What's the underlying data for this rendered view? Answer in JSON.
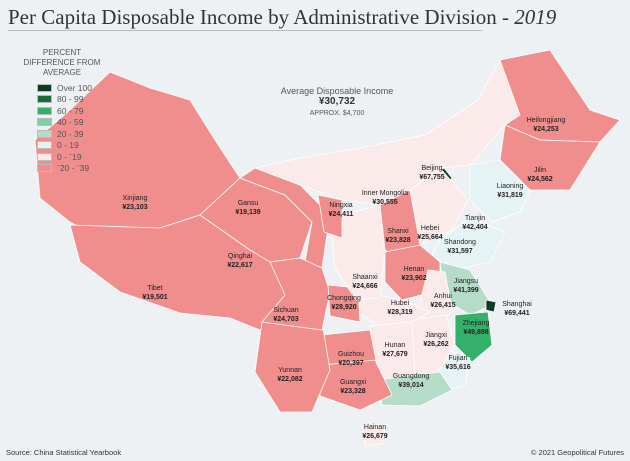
{
  "title": "Per Capita Disposable Income by Administrative Division - ",
  "title_year": "2019",
  "legend": {
    "heading": "PERCENT DIFFERENCE FROM AVERAGE",
    "items": [
      {
        "label": "Over 100",
        "color": "#0e3a22"
      },
      {
        "label": "80 - 99",
        "color": "#1a6b3c"
      },
      {
        "label": "60 - 79",
        "color": "#35b06a"
      },
      {
        "label": "40 - 59",
        "color": "#7fd0a0"
      },
      {
        "label": "20 - 39",
        "color": "#b5dcc8"
      },
      {
        "label": "0 - 19",
        "color": "#e6f3f5"
      },
      {
        "label": "0 - ˉ19",
        "color": "#fbeaea"
      },
      {
        "label": "ˉ20 - ˉ39",
        "color": "#f08d8d"
      }
    ]
  },
  "average": {
    "label": "Average Disposable Income",
    "value": "¥30,732",
    "approx": "APPROX. $4,700"
  },
  "provinces": [
    {
      "name": "Xinjiang",
      "value": "¥23,103"
    },
    {
      "name": "Tibet",
      "value": "¥19,501"
    },
    {
      "name": "Qinghai",
      "value": "¥22,617"
    },
    {
      "name": "Gansu",
      "value": "¥19,139"
    },
    {
      "name": "Inner Mongolia",
      "value": "¥30,555"
    },
    {
      "name": "Heilongjiang",
      "value": "¥24,253"
    },
    {
      "name": "Jilin",
      "value": "¥24,562"
    },
    {
      "name": "Liaoning",
      "value": "¥31,819"
    },
    {
      "name": "Beijing",
      "value": "¥67,755"
    },
    {
      "name": "Tianjin",
      "value": "¥42,404"
    },
    {
      "name": "Hebei",
      "value": "¥25,664"
    },
    {
      "name": "Shanxi",
      "value": "¥23,828"
    },
    {
      "name": "Shandong",
      "value": "¥31,597"
    },
    {
      "name": "Henan",
      "value": "¥23,902"
    },
    {
      "name": "Jiangsu",
      "value": "¥41,399"
    },
    {
      "name": "Shanghai",
      "value": "¥69,441"
    },
    {
      "name": "Anhui",
      "value": "¥26,415"
    },
    {
      "name": "Zhejiang",
      "value": "¥49,898"
    },
    {
      "name": "Fujian",
      "value": "¥35,616"
    },
    {
      "name": "Jiangxi",
      "value": "¥26,262"
    },
    {
      "name": "Hubei",
      "value": "¥28,319"
    },
    {
      "name": "Hunan",
      "value": "¥27,679"
    },
    {
      "name": "Guangdong",
      "value": "¥39,014"
    },
    {
      "name": "Guangxi",
      "value": "¥23,328"
    },
    {
      "name": "Hainan",
      "value": "¥26,679"
    },
    {
      "name": "Guizhou",
      "value": "¥20,397"
    },
    {
      "name": "Yunnan",
      "value": "¥22,082"
    },
    {
      "name": "Sichuan",
      "value": "¥24,703"
    },
    {
      "name": "Chongqing",
      "value": "¥28,920"
    },
    {
      "name": "Shaanxi",
      "value": "¥24,666"
    },
    {
      "name": "Ningxia",
      "value": "¥24,411"
    }
  ],
  "source": "Source: China Statistical Yearbook",
  "copyright": "© 2021 Geopolitical Futures"
}
